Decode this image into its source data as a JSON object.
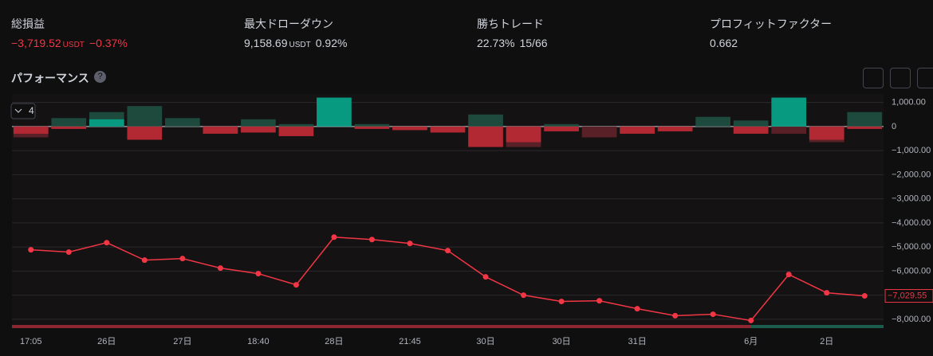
{
  "stats": [
    {
      "label": "総損益",
      "value": "−3,719.52",
      "unit": "USDT",
      "extra": "−0.37%",
      "color": "#f23645"
    },
    {
      "label": "最大ドローダウン",
      "value": "9,158.69",
      "unit": "USDT",
      "extra": "0.92%",
      "color": "#d1d4dc"
    },
    {
      "label": "勝ちトレード",
      "value": "22.73%",
      "extra": "15/66",
      "color": "#d1d4dc"
    },
    {
      "label": "プロフィットファクター",
      "value": "0.662",
      "color": "#d1d4dc"
    }
  ],
  "section_title": "パフォーマンス",
  "counter": "4",
  "chart_data": {
    "type": "combo",
    "categories": [
      "17:05",
      null,
      "26日",
      null,
      "27日",
      null,
      "18:40",
      null,
      "28日",
      null,
      "21:45",
      null,
      "30日",
      null,
      "30日",
      null,
      "31日",
      null,
      null,
      "6月",
      null,
      "2日",
      null
    ],
    "series": [
      {
        "type": "bar",
        "color": "#1d4a3d",
        "negative_color": "#5a2028",
        "values": [
          -450,
          350,
          600,
          850,
          350,
          -250,
          300,
          100,
          0,
          100,
          0,
          0,
          500,
          -850,
          100,
          -450,
          0,
          0,
          400,
          250,
          -300,
          -650,
          600
        ]
      },
      {
        "type": "bar",
        "color": "#089981",
        "negative_color": "#b22833",
        "values": [
          -300,
          -100,
          300,
          -550,
          0,
          -300,
          -250,
          -400,
          1200,
          -100,
          -150,
          -250,
          -850,
          -650,
          -200,
          0,
          -300,
          -200,
          0,
          -300,
          1200,
          -550,
          -100
        ]
      },
      {
        "type": "line",
        "color": "#f23645",
        "values": [
          -5115,
          -5210,
          -4820,
          -5545,
          -5480,
          -5875,
          -6105,
          -6570,
          -4590,
          -4690,
          -4850,
          -5150,
          -6240,
          -7000,
          -7260,
          -7230,
          -7560,
          -7850,
          -7790,
          -8050,
          -6140,
          -6900,
          -7029.55
        ]
      }
    ],
    "last_label": "−7,029.55",
    "ylim": [
      -8300,
      1350
    ],
    "yticks": [
      {
        "value": 1000,
        "label": "1,000.00"
      },
      0,
      {
        "value": -1000,
        "label": "−1,000.00"
      },
      {
        "value": -2000,
        "label": "−2,000.00"
      },
      {
        "value": -3000,
        "label": "−3,000.00"
      },
      {
        "value": -4000,
        "label": "−4,000.00"
      },
      {
        "value": -5000,
        "label": "−5,000.00"
      },
      {
        "value": -6000,
        "label": "−6,000.00"
      },
      {
        "value": -7000,
        "label": "−7,000.00"
      },
      {
        "value": -8000,
        "label": "−8,000.00"
      }
    ],
    "grid": true
  }
}
